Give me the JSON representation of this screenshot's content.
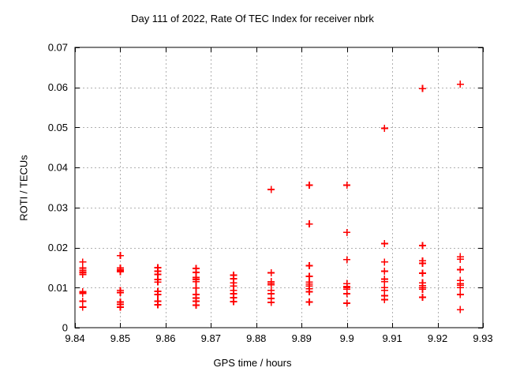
{
  "chart_data": {
    "type": "scatter",
    "title": "Day 111 of 2022, Rate Of TEC Index for receiver nbrk",
    "xlabel": "GPS time / hours",
    "ylabel": "ROTI / TECUs",
    "xlim": [
      9.84,
      9.93
    ],
    "ylim": [
      0,
      0.07
    ],
    "x_tick_values": [
      9.84,
      9.85,
      9.86,
      9.87,
      9.88,
      9.89,
      9.9,
      9.91,
      9.92,
      9.93
    ],
    "x_tick_labels": [
      "9.84",
      "9.85",
      "9.86",
      "9.87",
      "9.88",
      "9.89",
      "9.9",
      "9.91",
      "9.92",
      "9.93"
    ],
    "y_tick_values": [
      0,
      0.01,
      0.02,
      0.03,
      0.04,
      0.05,
      0.06,
      0.07
    ],
    "y_tick_labels": [
      "0",
      "0.01",
      "0.02",
      "0.03",
      "0.04",
      "0.05",
      "0.06",
      "0.07"
    ],
    "grid": true,
    "legend": "none",
    "marker": "plus",
    "colors": {
      "marker": "#ff0000",
      "grid": "#b0b0b0",
      "frame": "#000000",
      "text": "#000000"
    },
    "series": [
      {
        "name": "ROTI",
        "clusters": [
          {
            "x": 9.8417,
            "y": [
              0.0164,
              0.0149,
              0.0143,
              0.0138,
              0.0133,
              0.009,
              0.0086,
              0.0066,
              0.0051
            ]
          },
          {
            "x": 9.85,
            "y": [
              0.018,
              0.0149,
              0.0144,
              0.014,
              0.0093,
              0.0088,
              0.0064,
              0.0058,
              0.0051
            ]
          },
          {
            "x": 9.8583,
            "y": [
              0.015,
              0.0141,
              0.0133,
              0.012,
              0.0114,
              0.0091,
              0.0083,
              0.0066,
              0.0057
            ]
          },
          {
            "x": 9.8667,
            "y": [
              0.0148,
              0.0138,
              0.0125,
              0.012,
              0.0115,
              0.0099,
              0.0083,
              0.0074,
              0.0066,
              0.0056
            ]
          },
          {
            "x": 9.875,
            "y": [
              0.0131,
              0.0122,
              0.0112,
              0.0104,
              0.0093,
              0.0085,
              0.0075,
              0.0065
            ]
          },
          {
            "x": 9.8833,
            "y": [
              0.0345,
              0.0137,
              0.0115,
              0.0111,
              0.0107,
              0.0093,
              0.0085,
              0.0073,
              0.0063
            ]
          },
          {
            "x": 9.8917,
            "y": [
              0.0356,
              0.0259,
              0.0155,
              0.0128,
              0.0114,
              0.0109,
              0.0104,
              0.0097,
              0.009,
              0.0064
            ]
          },
          {
            "x": 9.9,
            "y": [
              0.0356,
              0.0238,
              0.017,
              0.011,
              0.0103,
              0.01,
              0.0096,
              0.0085,
              0.0061
            ]
          },
          {
            "x": 9.9083,
            "y": [
              0.0498,
              0.021,
              0.0164,
              0.0141,
              0.0121,
              0.0115,
              0.01,
              0.0093,
              0.008,
              0.007
            ]
          },
          {
            "x": 9.9167,
            "y": [
              0.0597,
              0.0205,
              0.0167,
              0.0161,
              0.0136,
              0.0112,
              0.0105,
              0.01,
              0.0096,
              0.0076
            ]
          },
          {
            "x": 9.925,
            "y": [
              0.0608,
              0.0177,
              0.0171,
              0.0145,
              0.0118,
              0.011,
              0.0106,
              0.01,
              0.0083,
              0.0045
            ]
          }
        ]
      }
    ]
  }
}
